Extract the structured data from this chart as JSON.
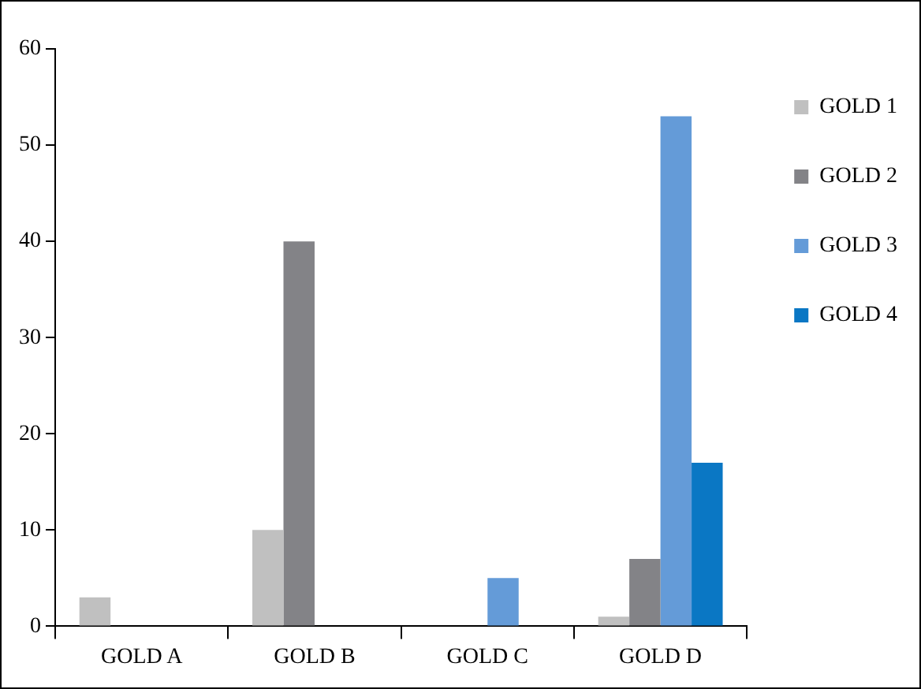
{
  "chart_data": {
    "type": "bar",
    "categories": [
      "GOLD A",
      "GOLD B",
      "GOLD C",
      "GOLD D"
    ],
    "series": [
      {
        "name": "GOLD 1",
        "color": "#c0c0c0",
        "values": [
          3,
          10,
          0,
          1
        ]
      },
      {
        "name": "GOLD 2",
        "color": "#838387",
        "values": [
          0,
          40,
          0,
          7
        ]
      },
      {
        "name": "GOLD 3",
        "color": "#649bd8",
        "values": [
          0,
          0,
          5,
          53
        ]
      },
      {
        "name": "GOLD 4",
        "color": "#0a77c4",
        "values": [
          0,
          0,
          0,
          17
        ]
      }
    ],
    "ylim": [
      0,
      60
    ],
    "yticks": [
      0,
      10,
      20,
      30,
      40,
      50,
      60
    ],
    "grid": false,
    "legend": "right"
  }
}
